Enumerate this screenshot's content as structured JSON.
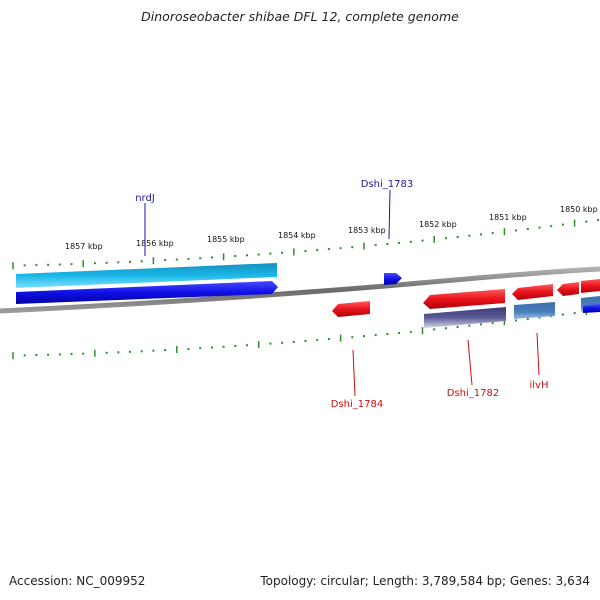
{
  "title": "Dinoroseobacter shibae DFL 12, complete genome",
  "footer": {
    "accession": "Accession: NC_009952",
    "summary": "Topology: circular; Length: 3,789,584 bp; Genes: 3,634"
  },
  "colors": {
    "backbone": "#7a7a7a",
    "tick": "#2e8b2e",
    "forward_label": "#1a1aa0",
    "reverse_label": "#cc1111",
    "gene_red": "#e8141c",
    "gene_blue": "#1010e6",
    "gene_cyan": "#1ab8e8",
    "gene_steel": "#4a80bb",
    "gene_purple": "#4a4a8a"
  },
  "ticks": [
    {
      "label": "1857 kbp"
    },
    {
      "label": "1856 kbp"
    },
    {
      "label": "1855 kbp"
    },
    {
      "label": "1854 kbp"
    },
    {
      "label": "1853 kbp"
    },
    {
      "label": "1852 kbp"
    },
    {
      "label": "1851 kbp"
    },
    {
      "label": "1850 kbp"
    }
  ],
  "gene_labels": {
    "forward": [
      {
        "name": "nrdJ"
      },
      {
        "name": "Dshi_1783"
      }
    ],
    "reverse": [
      {
        "name": "Dshi_1784"
      },
      {
        "name": "Dshi_1782"
      },
      {
        "name": "ilvH"
      }
    ]
  }
}
